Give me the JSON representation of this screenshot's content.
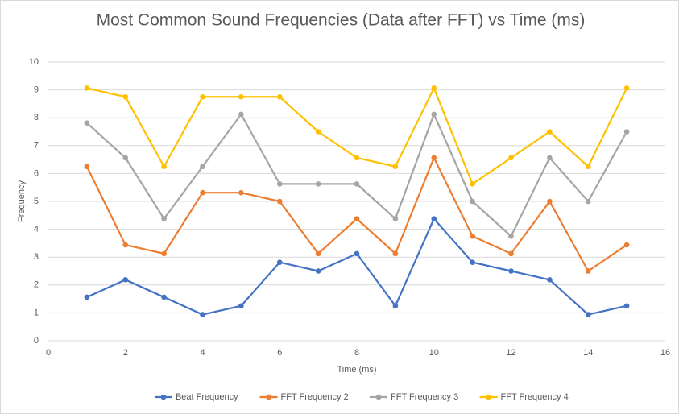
{
  "chart_data": {
    "type": "line",
    "title": "Most Common Sound Frequencies (Data after FFT) vs Time (ms)",
    "x_label": "Time (ms)",
    "y_label": "Frequency",
    "x": [
      1,
      2,
      3,
      4,
      5,
      6,
      7,
      8,
      9,
      10,
      11,
      12,
      13,
      14,
      15
    ],
    "series": [
      {
        "name": "Beat Frequency",
        "color": "#4472c4",
        "values": [
          1.5625,
          2.1875,
          1.5625,
          0.9375,
          1.25,
          2.8125,
          2.5,
          3.125,
          1.25,
          4.375,
          2.8125,
          2.5,
          2.1875,
          0.9375,
          1.25
        ]
      },
      {
        "name": "FFT Frequency 2",
        "color": "#ed7d31",
        "values": [
          6.25,
          3.4375,
          3.125,
          5.3125,
          5.3125,
          5.0,
          3.125,
          4.375,
          3.125,
          6.5625,
          3.75,
          3.125,
          5.0,
          2.5,
          3.4375
        ]
      },
      {
        "name": "FFT Frequency 3",
        "color": "#a5a5a5",
        "values": [
          7.8125,
          6.5625,
          4.375,
          6.25,
          8.125,
          5.625,
          5.625,
          5.625,
          4.375,
          8.125,
          5.0,
          3.75,
          6.5625,
          5.0,
          7.5
        ]
      },
      {
        "name": "FFT Frequency 4",
        "color": "#ffc000",
        "values": [
          9.0625,
          8.75,
          6.25,
          8.75,
          8.75,
          8.75,
          7.5,
          6.5625,
          6.25,
          9.0625,
          5.625,
          6.5625,
          7.5,
          6.25,
          9.0625
        ]
      }
    ],
    "xlim": [
      0,
      16
    ],
    "xticks": [
      0,
      2,
      4,
      6,
      8,
      10,
      12,
      14,
      16
    ],
    "ylim": [
      0,
      10
    ],
    "yticks": [
      0,
      1,
      2,
      3,
      4,
      5,
      6,
      7,
      8,
      9,
      10
    ],
    "grid": true,
    "legend": "bottom"
  }
}
